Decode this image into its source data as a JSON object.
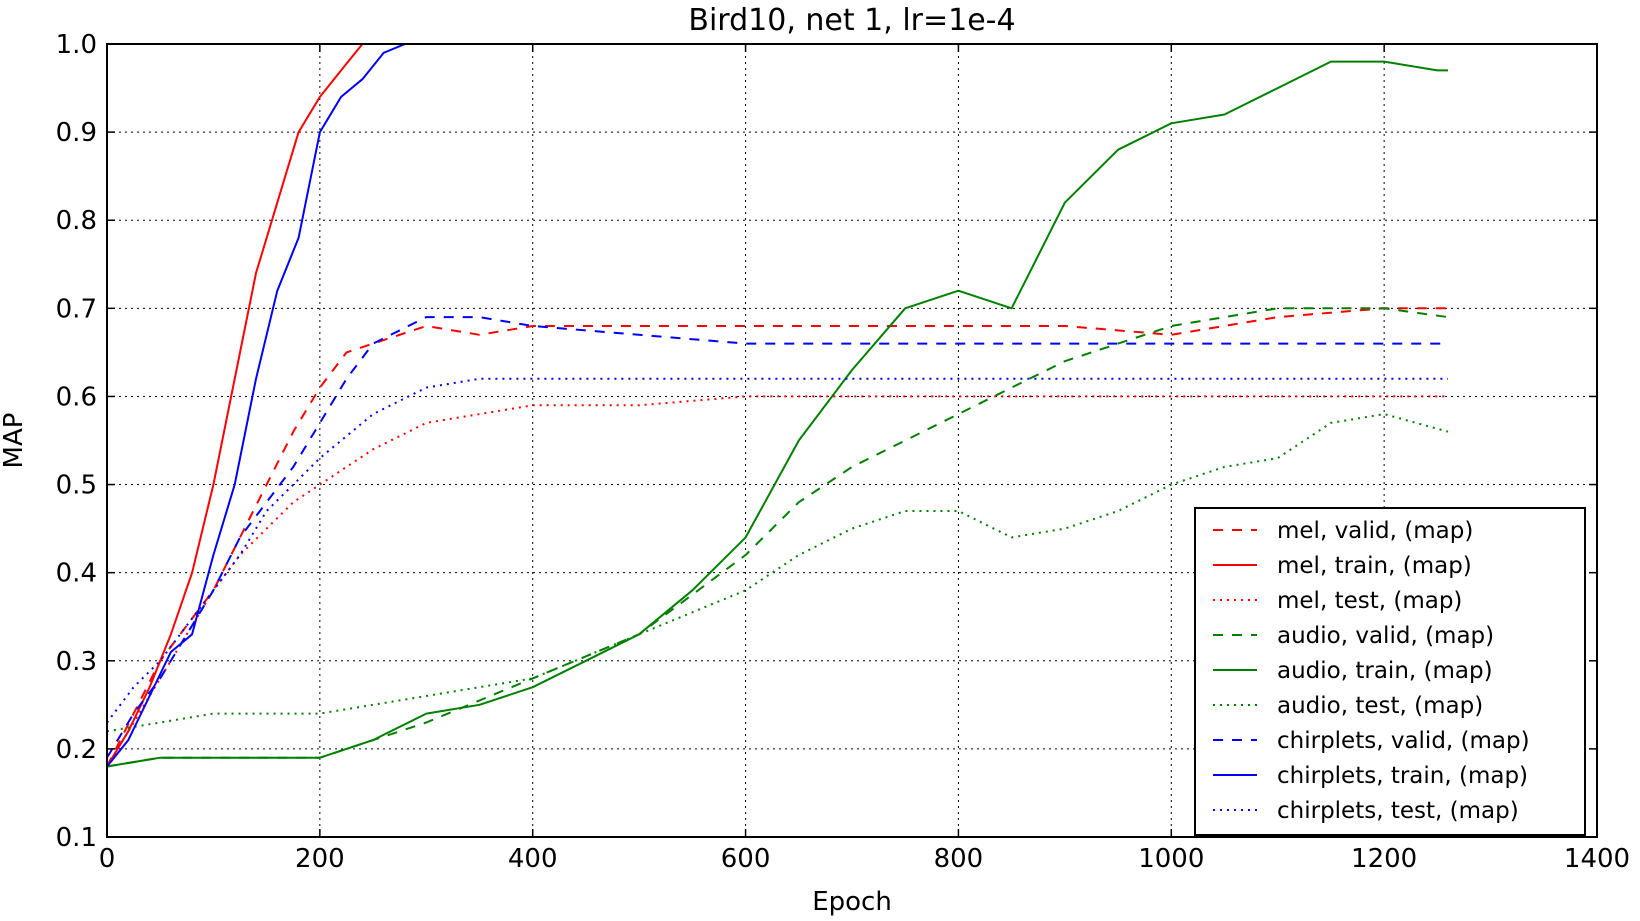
{
  "chart_data": {
    "type": "line",
    "title": "Bird10, net 1, lr=1e-4",
    "xlabel": "Epoch",
    "ylabel": "MAP",
    "xlim": [
      0,
      1400
    ],
    "ylim": [
      0.1,
      1.0
    ],
    "xticks": [
      0,
      200,
      400,
      600,
      800,
      1000,
      1200,
      1400
    ],
    "yticks": [
      0.1,
      0.2,
      0.3,
      0.4,
      0.5,
      0.6,
      0.7,
      0.8,
      0.9,
      1.0
    ],
    "xtick_labels": [
      "0",
      "200",
      "400",
      "600",
      "800",
      "1000",
      "1200",
      "1400"
    ],
    "ytick_labels": [
      "0.1",
      "0.2",
      "0.3",
      "0.4",
      "0.5",
      "0.6",
      "0.7",
      "0.8",
      "0.9",
      "1.0"
    ],
    "grid": true,
    "legend_position": "lower-right",
    "series": [
      {
        "name": "mel, valid, (map)",
        "color": "#ff0000",
        "linestyle": "dashed",
        "x": [
          0,
          25,
          50,
          75,
          100,
          125,
          150,
          175,
          200,
          225,
          250,
          300,
          350,
          400,
          500,
          600,
          700,
          800,
          900,
          1000,
          1100,
          1200,
          1260
        ],
        "y": [
          0.18,
          0.24,
          0.3,
          0.34,
          0.38,
          0.44,
          0.5,
          0.56,
          0.61,
          0.65,
          0.66,
          0.68,
          0.67,
          0.68,
          0.68,
          0.68,
          0.68,
          0.68,
          0.68,
          0.67,
          0.69,
          0.7,
          0.7
        ]
      },
      {
        "name": "mel, train, (map)",
        "color": "#ff0000",
        "linestyle": "solid",
        "x": [
          0,
          20,
          40,
          60,
          80,
          100,
          120,
          140,
          160,
          180,
          200,
          220,
          240,
          255
        ],
        "y": [
          0.18,
          0.22,
          0.27,
          0.33,
          0.4,
          0.5,
          0.62,
          0.74,
          0.82,
          0.9,
          0.94,
          0.97,
          1.0,
          1.0
        ]
      },
      {
        "name": "mel, test, (map)",
        "color": "#ff0000",
        "linestyle": "dotted",
        "x": [
          0,
          25,
          50,
          75,
          100,
          125,
          150,
          175,
          200,
          250,
          300,
          350,
          400,
          500,
          600,
          800,
          1000,
          1200,
          1260
        ],
        "y": [
          0.18,
          0.23,
          0.28,
          0.33,
          0.38,
          0.42,
          0.45,
          0.48,
          0.5,
          0.54,
          0.57,
          0.58,
          0.59,
          0.59,
          0.6,
          0.6,
          0.6,
          0.6,
          0.6
        ]
      },
      {
        "name": "audio, valid, (map)",
        "color": "#008000",
        "linestyle": "dashed",
        "x": [
          0,
          50,
          100,
          200,
          300,
          400,
          500,
          600,
          650,
          700,
          750,
          800,
          850,
          900,
          950,
          1000,
          1100,
          1200,
          1260
        ],
        "y": [
          0.18,
          0.19,
          0.19,
          0.19,
          0.23,
          0.28,
          0.33,
          0.42,
          0.48,
          0.52,
          0.55,
          0.58,
          0.61,
          0.64,
          0.66,
          0.68,
          0.7,
          0.7,
          0.69
        ]
      },
      {
        "name": "audio, train, (map)",
        "color": "#008000",
        "linestyle": "solid",
        "x": [
          0,
          50,
          100,
          150,
          200,
          250,
          300,
          350,
          400,
          450,
          500,
          550,
          600,
          650,
          700,
          750,
          800,
          850,
          900,
          950,
          1000,
          1050,
          1100,
          1150,
          1200,
          1250,
          1260
        ],
        "y": [
          0.18,
          0.19,
          0.19,
          0.19,
          0.19,
          0.21,
          0.24,
          0.25,
          0.27,
          0.3,
          0.33,
          0.38,
          0.44,
          0.55,
          0.63,
          0.7,
          0.72,
          0.7,
          0.82,
          0.88,
          0.91,
          0.92,
          0.95,
          0.98,
          0.98,
          0.97,
          0.97
        ]
      },
      {
        "name": "audio, test, (map)",
        "color": "#008000",
        "linestyle": "dotted",
        "x": [
          0,
          50,
          100,
          200,
          300,
          400,
          500,
          600,
          650,
          700,
          750,
          800,
          850,
          900,
          950,
          1000,
          1050,
          1100,
          1150,
          1200,
          1260
        ],
        "y": [
          0.22,
          0.23,
          0.24,
          0.24,
          0.26,
          0.28,
          0.33,
          0.38,
          0.42,
          0.45,
          0.47,
          0.47,
          0.44,
          0.45,
          0.47,
          0.5,
          0.52,
          0.53,
          0.57,
          0.58,
          0.56
        ]
      },
      {
        "name": "chirplets, valid, (map)",
        "color": "#0000ff",
        "linestyle": "dashed",
        "x": [
          0,
          25,
          50,
          75,
          100,
          125,
          150,
          175,
          200,
          225,
          250,
          300,
          350,
          400,
          500,
          600,
          700,
          800,
          900,
          1000,
          1100,
          1200,
          1260
        ],
        "y": [
          0.19,
          0.24,
          0.28,
          0.33,
          0.38,
          0.44,
          0.48,
          0.52,
          0.57,
          0.62,
          0.66,
          0.69,
          0.69,
          0.68,
          0.67,
          0.66,
          0.66,
          0.66,
          0.66,
          0.66,
          0.66,
          0.66,
          0.66
        ]
      },
      {
        "name": "chirplets, train, (map)",
        "color": "#0000ff",
        "linestyle": "solid",
        "x": [
          0,
          20,
          40,
          60,
          80,
          100,
          120,
          140,
          160,
          180,
          200,
          220,
          240,
          260,
          280,
          290
        ],
        "y": [
          0.18,
          0.21,
          0.26,
          0.31,
          0.33,
          0.42,
          0.5,
          0.62,
          0.72,
          0.78,
          0.9,
          0.94,
          0.96,
          0.99,
          1.0,
          1.0
        ]
      },
      {
        "name": "chirplets, test, (map)",
        "color": "#0000ff",
        "linestyle": "dotted",
        "x": [
          0,
          25,
          50,
          75,
          100,
          125,
          150,
          175,
          200,
          250,
          300,
          350,
          400,
          500,
          600,
          800,
          1000,
          1200,
          1260
        ],
        "y": [
          0.23,
          0.27,
          0.3,
          0.34,
          0.38,
          0.42,
          0.47,
          0.5,
          0.53,
          0.58,
          0.61,
          0.62,
          0.62,
          0.62,
          0.62,
          0.62,
          0.62,
          0.62,
          0.62
        ]
      }
    ]
  }
}
